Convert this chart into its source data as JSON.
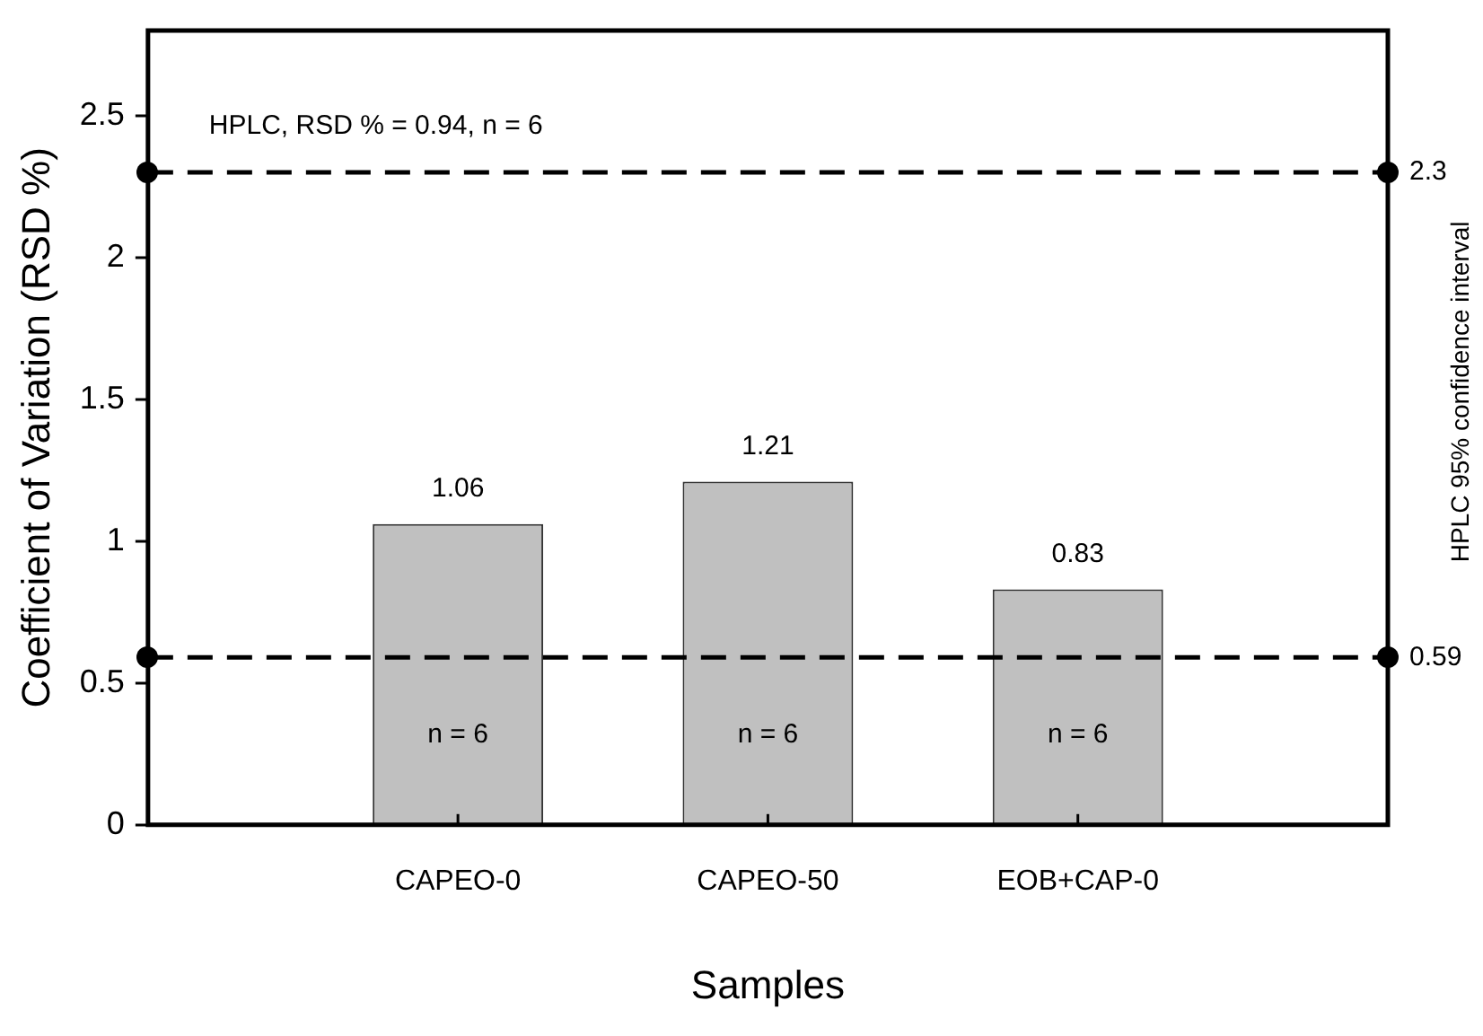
{
  "chart_data": {
    "type": "bar",
    "xlabel": "Samples",
    "ylabel": "Coefficient of Variation (RSD %)",
    "y2label": "HPLC 95% confidence interval",
    "categories": [
      null,
      "CAPEO-0",
      "CAPEO-50",
      "EOB+CAP-0",
      null
    ],
    "values": [
      null,
      1.06,
      1.21,
      0.83,
      null
    ],
    "color": "#c0c0c0",
    "ylim": [
      0,
      2.8
    ],
    "yticks": [
      0,
      0.5,
      1,
      1.5,
      2,
      2.5
    ],
    "data_labels": true,
    "ref_lines": [
      {
        "axis": "y",
        "value": 2.3,
        "label": "2.3",
        "color": "#000000",
        "line_style": "dashed"
      },
      {
        "axis": "y",
        "value": 0.59,
        "label": "0.59",
        "color": "#000000",
        "line_style": "dashed"
      }
    ],
    "annotations": [
      "HPLC, RSD % = 0.94, n = 6",
      "n = 6",
      "n = 6",
      "n = 6"
    ],
    "legend": false
  }
}
